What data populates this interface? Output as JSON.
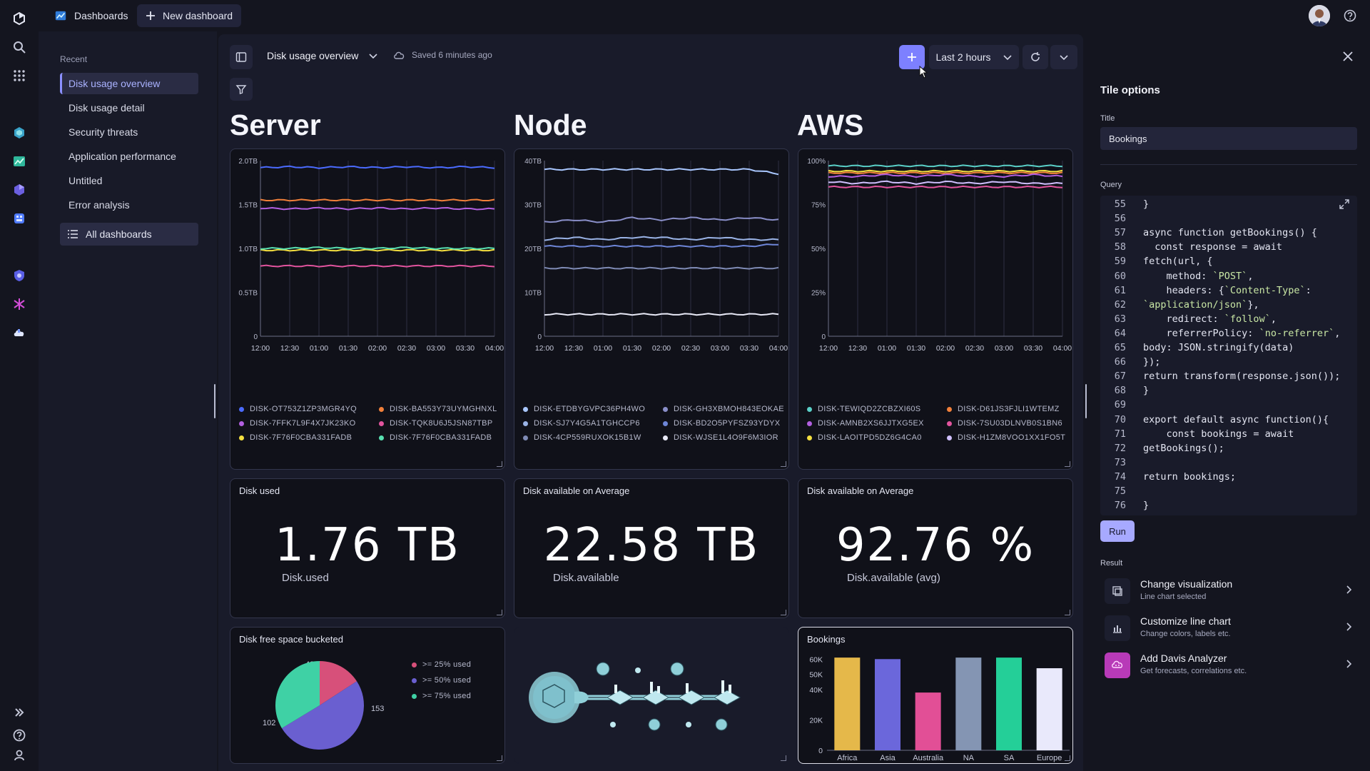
{
  "topbar": {
    "dashboards_label": "Dashboards",
    "new_dashboard_label": "New dashboard"
  },
  "sidebar": {
    "recent_heading": "Recent",
    "items": [
      {
        "label": "Disk usage overview",
        "active": true
      },
      {
        "label": "Disk usage detail"
      },
      {
        "label": "Security threats"
      },
      {
        "label": "Application performance"
      },
      {
        "label": "Untitled"
      },
      {
        "label": "Error analysis"
      }
    ],
    "all_dashboards": "All dashboards"
  },
  "toolbar": {
    "dashboard_title": "Disk usage overview",
    "saved_text": "Saved 6 minutes ago",
    "timeframe": "Last 2 hours"
  },
  "sections": [
    "Server",
    "Node",
    "AWS"
  ],
  "chart_data": [
    {
      "type": "line",
      "x": [
        "12:00",
        "12:30",
        "01:00",
        "01:30",
        "02:00",
        "02:30",
        "03:00",
        "03:30",
        "04:00"
      ],
      "ylim": [
        0,
        2.0
      ],
      "yticks": [
        "2.0TB",
        "1.5TB",
        "1.0TB",
        "0.5TB",
        "0"
      ],
      "series": [
        {
          "name": "DISK-OT753Z1ZP3MGR4YQ",
          "color": "#4b6bff",
          "values": [
            1.92,
            1.93,
            1.92,
            1.93,
            1.92,
            1.93,
            1.92,
            1.93,
            1.92
          ]
        },
        {
          "name": "DISK-BA553Y73UYMGHNXL",
          "color": "#f2803a",
          "values": [
            1.55,
            1.55,
            1.55,
            1.55,
            1.55,
            1.55,
            1.55,
            1.55,
            1.55
          ]
        },
        {
          "name": "DISK-7FFK7L9F4X7JK23KO",
          "color": "#b25fe0",
          "values": [
            1.46,
            1.45,
            1.46,
            1.45,
            1.46,
            1.45,
            1.46,
            1.45,
            1.45
          ]
        },
        {
          "name": "DISK-TQK8U6J5JSN87TBP",
          "color": "#e2549e",
          "values": [
            0.8,
            0.8,
            0.8,
            0.8,
            0.8,
            0.8,
            0.8,
            0.8,
            0.8
          ]
        },
        {
          "name": "DISK-7F76F0CBA331FADB",
          "color": "#f4df40",
          "values": [
            0.98,
            0.98,
            0.98,
            0.98,
            0.98,
            0.98,
            0.98,
            0.98,
            0.98
          ]
        },
        {
          "name": "DISK-7F76F0CBA331FADB",
          "color": "#58e0b0",
          "values": [
            1.0,
            1.0,
            1.01,
            1.0,
            1.0,
            1.01,
            1.0,
            1.0,
            1.0
          ]
        }
      ]
    },
    {
      "type": "line",
      "x": [
        "12:00",
        "12:30",
        "01:00",
        "01:30",
        "02:00",
        "02:30",
        "03:00",
        "03:30",
        "04:00"
      ],
      "ylim": [
        0,
        40
      ],
      "yticks": [
        "40TB",
        "30TB",
        "20TB",
        "10TB",
        "0"
      ],
      "series": [
        {
          "name": "DISK-ETDBYGVPC36PH4WO",
          "color": "#a9c7ff",
          "values": [
            38,
            38,
            38,
            38,
            38,
            38,
            38,
            38,
            37
          ]
        },
        {
          "name": "DISK-GH3XBMOH843EOKAE",
          "color": "#8a8fc9",
          "values": [
            26,
            26.5,
            26,
            27,
            26.5,
            27,
            26.5,
            27,
            26.5
          ]
        },
        {
          "name": "DISK-SJ7Y4G5A1TGHCCP6",
          "color": "#9ab3e6",
          "values": [
            22,
            22.5,
            22,
            22.5,
            22.5,
            22,
            22.5,
            22,
            22
          ]
        },
        {
          "name": "DISK-BD2O5PYFSZ93YDYX",
          "color": "#6e86d8",
          "values": [
            20.5,
            20.5,
            20.5,
            20.5,
            20.5,
            20.5,
            20.5,
            20.5,
            21
          ]
        },
        {
          "name": "DISK-4CP559RUXOK15B1W",
          "color": "#7f8bb5",
          "values": [
            15.5,
            15.5,
            15.5,
            15.5,
            15.5,
            15.5,
            15.5,
            15.5,
            15.5
          ]
        },
        {
          "name": "DISK-WJSE1L4O9F6M3IOR",
          "color": "#e8e9f6",
          "values": [
            5,
            5,
            5,
            5,
            5,
            5,
            5,
            5,
            5
          ]
        }
      ]
    },
    {
      "type": "line",
      "x": [
        "12:00",
        "12:30",
        "01:00",
        "01:30",
        "02:00",
        "02:30",
        "03:00",
        "03:30",
        "04:00"
      ],
      "ylim": [
        0,
        100
      ],
      "yticks": [
        "100%",
        "75%",
        "50%",
        "25%",
        "0"
      ],
      "series": [
        {
          "name": "DISK-TEWIQD2ZCBZXI60S",
          "color": "#5ad0c8",
          "values": [
            97,
            97,
            97,
            97,
            97,
            97,
            97,
            97,
            97
          ]
        },
        {
          "name": "DISK-D61JS3FJLI1WTEMZ",
          "color": "#f2803a",
          "values": [
            93,
            93,
            93,
            93,
            93,
            93,
            93,
            93,
            93
          ]
        },
        {
          "name": "DISK-AMNB2XS6JJTXG5EX",
          "color": "#b25fe0",
          "values": [
            91,
            91,
            92,
            91,
            92,
            91,
            91,
            92,
            91
          ]
        },
        {
          "name": "DISK-7SU03DLNVB0S1BN6",
          "color": "#e2549e",
          "values": [
            85,
            85,
            85,
            85,
            85,
            85,
            85,
            85,
            85
          ]
        },
        {
          "name": "DISK-LAOITPD5DZ6G4CA0",
          "color": "#f4df40",
          "values": [
            94,
            94,
            94,
            94,
            94,
            94,
            94,
            94,
            94
          ]
        },
        {
          "name": "DISK-H1ZM8VOO1XX1FO5T",
          "color": "#d0c0ff",
          "values": [
            88,
            87,
            88,
            87,
            88,
            87,
            88,
            87,
            87
          ]
        }
      ]
    },
    {
      "type": "pie",
      "title": "Disk free space bucketed",
      "series": [
        {
          "name": ">= 25% used",
          "color": "#d7507a",
          "value": 48
        },
        {
          "name": ">= 50% used",
          "color": "#6a5fd0",
          "value": 153
        },
        {
          "name": ">= 75% used",
          "color": "#3fd1a5",
          "value": 102
        }
      ]
    },
    {
      "type": "bar",
      "title": "Bookings",
      "categories": [
        "Africa",
        "Asia",
        "Australia",
        "NA",
        "SA",
        "Europe"
      ],
      "values": [
        61000,
        60000,
        38000,
        61000,
        61000,
        54000
      ],
      "colors": [
        "#e5b84a",
        "#6b67db",
        "#e24f96",
        "#8495b3",
        "#24cf98",
        "#e9e9fb"
      ],
      "yticks": [
        "60K",
        "50K",
        "40K",
        "20K",
        "0"
      ]
    }
  ],
  "kpis": [
    {
      "title": "Disk used",
      "value": "1.76 TB",
      "sub": "Disk.used"
    },
    {
      "title": "Disk available on Average",
      "value": "22.58 TB",
      "sub": "Disk.available"
    },
    {
      "title": "Disk available on Average",
      "value": "92.76 %",
      "sub": "Disk.available (avg)"
    }
  ],
  "tile_options": {
    "heading": "Tile options",
    "title_label": "Title",
    "title_value": "Bookings",
    "query_label": "Query",
    "code": [
      {
        "n": "55",
        "t": "}"
      },
      {
        "n": "56",
        "t": ""
      },
      {
        "n": "57",
        "t": "async function getBookings() {"
      },
      {
        "n": "58",
        "t": "  const response = await"
      },
      {
        "n": "59",
        "t": "fetch(url, {"
      },
      {
        "n": "60",
        "t": "    method: `POST`,"
      },
      {
        "n": "61",
        "t": "    headers: {`Content-Type`:"
      },
      {
        "n": "62",
        "t": "`application/json`},"
      },
      {
        "n": "63",
        "t": "    redirect: `follow`,"
      },
      {
        "n": "64",
        "t": "    referrerPolicy: `no-referrer`,"
      },
      {
        "n": "65",
        "t": "body: JSON.stringify(data)"
      },
      {
        "n": "66",
        "t": "});"
      },
      {
        "n": "67",
        "t": "return transform(response.json());"
      },
      {
        "n": "68",
        "t": "}"
      },
      {
        "n": "69",
        "t": ""
      },
      {
        "n": "70",
        "t": "export default async function(){"
      },
      {
        "n": "71",
        "t": "    const bookings = await"
      },
      {
        "n": "72",
        "t": "getBookings();"
      },
      {
        "n": "73",
        "t": ""
      },
      {
        "n": "74",
        "t": "return bookings;"
      },
      {
        "n": "75",
        "t": ""
      },
      {
        "n": "76",
        "t": "}"
      }
    ],
    "run_label": "Run",
    "result_label": "Result",
    "results": [
      {
        "title": "Change visualization",
        "sub": "Line chart selected"
      },
      {
        "title": "Customize line chart",
        "sub": "Change colors, labels etc."
      },
      {
        "title": "Add Davis Analyzer",
        "sub": "Get forecasts, correlations etc."
      }
    ]
  }
}
